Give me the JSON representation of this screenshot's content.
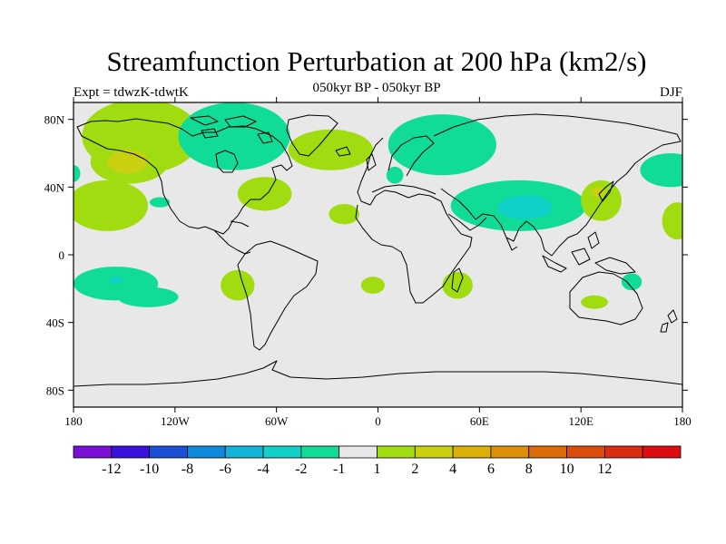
{
  "header": {
    "title": "Streamfunction Perturbation at 200 hPa (km2/s)",
    "subtitle": "050kyr BP - 050kyr BP",
    "left": "Expt = tdwzK-tdwtK",
    "right": "DJF"
  },
  "map": {
    "background": "#e8e8e8",
    "x_ticks": [
      {
        "lon": -180,
        "label": "180"
      },
      {
        "lon": -120,
        "label": "120W"
      },
      {
        "lon": -60,
        "label": "60W"
      },
      {
        "lon": 0,
        "label": "0"
      },
      {
        "lon": 60,
        "label": "60E"
      },
      {
        "lon": 120,
        "label": "120E"
      },
      {
        "lon": 180,
        "label": "180"
      }
    ],
    "y_ticks": [
      {
        "lat": 80,
        "label": "80N"
      },
      {
        "lat": 40,
        "label": "40N"
      },
      {
        "lat": 0,
        "label": "0"
      },
      {
        "lat": -40,
        "label": "40S"
      },
      {
        "lat": -80,
        "label": "80S"
      }
    ],
    "lon_range": [
      -180,
      180
    ],
    "lat_range": [
      -90,
      90
    ]
  },
  "colorbar": {
    "colors": [
      "#7a0fd8",
      "#3c10dc",
      "#1a50d8",
      "#1088dc",
      "#10b4d8",
      "#10d0c8",
      "#10dc98",
      "#e8e8e8",
      "#a0dc10",
      "#c8d010",
      "#dcb008",
      "#dc9008",
      "#dc6c08",
      "#dc4c0c",
      "#dc2c10",
      "#dc0c10"
    ],
    "labels": [
      "-12",
      "-10",
      "-8",
      "-6",
      "-4",
      "-2",
      "-1",
      "1",
      "2",
      "4",
      "6",
      "8",
      "10",
      "12"
    ]
  },
  "fields": [
    {
      "type": "ellipse",
      "lon": -140,
      "lat": 70,
      "rx": 35,
      "ry": 22,
      "value": 2,
      "color": "#a0dc10"
    },
    {
      "type": "ellipse",
      "lon": -147,
      "lat": 55,
      "rx": 23,
      "ry": 13,
      "value": 2,
      "color": "#a0dc10"
    },
    {
      "type": "ellipse",
      "lon": -148,
      "lat": 55,
      "rx": 12,
      "ry": 7,
      "value": 4,
      "color": "#c8d010"
    },
    {
      "type": "ellipse",
      "lon": -180,
      "lat": 48,
      "rx": 4,
      "ry": 5,
      "value": -1,
      "color": "#10dc98"
    },
    {
      "type": "ellipse",
      "lon": -85,
      "lat": 70,
      "rx": 33,
      "ry": 20,
      "value": -1,
      "color": "#10dc98"
    },
    {
      "type": "ellipse",
      "lon": -28,
      "lat": 62,
      "rx": 25,
      "ry": 12,
      "value": 2,
      "color": "#a0dc10"
    },
    {
      "type": "ellipse",
      "lon": 38,
      "lat": 65,
      "rx": 32,
      "ry": 18,
      "value": -1,
      "color": "#10dc98"
    },
    {
      "type": "ellipse",
      "lon": 10,
      "lat": 47,
      "rx": 5,
      "ry": 5,
      "value": -1,
      "color": "#10dc98"
    },
    {
      "type": "ellipse",
      "lon": -67,
      "lat": 36,
      "rx": 16,
      "ry": 10,
      "value": 2,
      "color": "#a0dc10"
    },
    {
      "type": "ellipse",
      "lon": -160,
      "lat": 29,
      "rx": 24,
      "ry": 15,
      "value": 2,
      "color": "#a0dc10"
    },
    {
      "type": "ellipse",
      "lon": -129,
      "lat": 31,
      "rx": 6,
      "ry": 3,
      "value": -1,
      "color": "#10dc98"
    },
    {
      "type": "ellipse",
      "lon": -20,
      "lat": 24,
      "rx": 9,
      "ry": 6,
      "value": 2,
      "color": "#a0dc10"
    },
    {
      "type": "ellipse",
      "lon": 83,
      "lat": 29,
      "rx": 40,
      "ry": 15,
      "value": -1,
      "color": "#10dc98"
    },
    {
      "type": "ellipse",
      "lon": 87,
      "lat": 28,
      "rx": 16,
      "ry": 7,
      "value": -2,
      "color": "#10d0c8"
    },
    {
      "type": "ellipse",
      "lon": 132,
      "lat": 32,
      "rx": 12,
      "ry": 12,
      "value": 2,
      "color": "#a0dc10"
    },
    {
      "type": "ellipse",
      "lon": 130,
      "lat": 37,
      "rx": 4,
      "ry": 3,
      "value": 4,
      "color": "#c8d010"
    },
    {
      "type": "ellipse",
      "lon": 173,
      "lat": 50,
      "rx": 18,
      "ry": 10,
      "value": -1,
      "color": "#10dc98"
    },
    {
      "type": "ellipse",
      "lon": 177,
      "lat": 20,
      "rx": 9,
      "ry": 11,
      "value": 2,
      "color": "#a0dc10"
    },
    {
      "type": "ellipse",
      "lon": -155,
      "lat": -17,
      "rx": 25,
      "ry": 10,
      "value": -1,
      "color": "#10dc98"
    },
    {
      "type": "ellipse",
      "lon": -136,
      "lat": -25,
      "rx": 18,
      "ry": 6,
      "value": -1,
      "color": "#10dc98"
    },
    {
      "type": "ellipse",
      "lon": -155,
      "lat": -15,
      "rx": 4,
      "ry": 2,
      "value": -2,
      "color": "#10d0c8"
    },
    {
      "type": "ellipse",
      "lon": -83,
      "lat": -18,
      "rx": 10,
      "ry": 9,
      "value": 2,
      "color": "#a0dc10"
    },
    {
      "type": "ellipse",
      "lon": -3,
      "lat": -18,
      "rx": 7,
      "ry": 5,
      "value": 2,
      "color": "#a0dc10"
    },
    {
      "type": "ellipse",
      "lon": 47,
      "lat": -18,
      "rx": 9,
      "ry": 8,
      "value": 2,
      "color": "#a0dc10"
    },
    {
      "type": "ellipse",
      "lon": 150,
      "lat": -16,
      "rx": 6,
      "ry": 5,
      "value": -1,
      "color": "#10dc98"
    },
    {
      "type": "ellipse",
      "lon": 128,
      "lat": -28,
      "rx": 8,
      "ry": 4,
      "value": 2,
      "color": "#a0dc10"
    }
  ]
}
